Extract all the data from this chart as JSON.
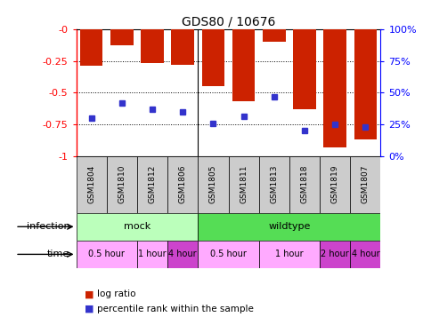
{
  "title": "GDS80 / 10676",
  "samples": [
    "GSM1804",
    "GSM1810",
    "GSM1812",
    "GSM1806",
    "GSM1805",
    "GSM1811",
    "GSM1813",
    "GSM1818",
    "GSM1819",
    "GSM1807"
  ],
  "log_ratio": [
    -0.29,
    -0.13,
    -0.27,
    -0.28,
    -0.45,
    -0.57,
    -0.1,
    -0.63,
    -0.93,
    -0.87
  ],
  "percentile": [
    30,
    42,
    37,
    35,
    26,
    31,
    47,
    20,
    25,
    23
  ],
  "y_left_ticks": [
    0,
    -0.25,
    -0.5,
    -0.75,
    -1
  ],
  "y_right_ticks": [
    0,
    25,
    50,
    75,
    100
  ],
  "bar_color": "#cc2200",
  "dot_color": "#3333cc",
  "infection_groups": [
    {
      "label": "mock",
      "start": 0,
      "end": 3,
      "color": "#bbffbb"
    },
    {
      "label": "wildtype",
      "start": 4,
      "end": 9,
      "color": "#55dd55"
    }
  ],
  "time_groups": [
    {
      "label": "0.5 hour",
      "start": 0,
      "end": 1,
      "color": "#ffaaff"
    },
    {
      "label": "1 hour",
      "start": 2,
      "end": 2,
      "color": "#ffaaff"
    },
    {
      "label": "4 hour",
      "start": 3,
      "end": 3,
      "color": "#cc44cc"
    },
    {
      "label": "0.5 hour",
      "start": 4,
      "end": 5,
      "color": "#ffaaff"
    },
    {
      "label": "1 hour",
      "start": 6,
      "end": 7,
      "color": "#ffaaff"
    },
    {
      "label": "2 hour",
      "start": 8,
      "end": 8,
      "color": "#cc44cc"
    },
    {
      "label": "4 hour",
      "start": 9,
      "end": 9,
      "color": "#cc44cc"
    }
  ],
  "legend_items": [
    {
      "label": "log ratio",
      "color": "#cc2200"
    },
    {
      "label": "percentile rank within the sample",
      "color": "#3333cc"
    }
  ],
  "group_separator": 3.5
}
